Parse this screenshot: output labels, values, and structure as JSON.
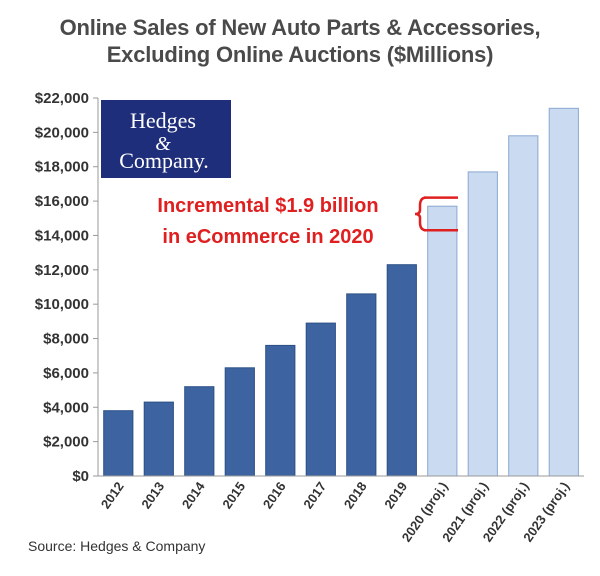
{
  "chart_data": {
    "type": "bar",
    "title_line1": "Online Sales of New Auto Parts & Accessories,",
    "title_line2": "Excluding Online Auctions ($Millions)",
    "categories": [
      "2012",
      "2013",
      "2014",
      "2015",
      "2016",
      "2017",
      "2018",
      "2019",
      "2020 (proj.)",
      "2021 (proj.)",
      "2022 (proj.)",
      "2023 (proj.)"
    ],
    "values": [
      3800,
      4300,
      5200,
      6300,
      7600,
      8900,
      10600,
      12300,
      15700,
      17700,
      19800,
      21400
    ],
    "projected": [
      false,
      false,
      false,
      false,
      false,
      false,
      false,
      false,
      true,
      true,
      true,
      true
    ],
    "yticks": [
      "$0",
      "$2,000",
      "$4,000",
      "$6,000",
      "$8,000",
      "$10,000",
      "$12,000",
      "$14,000",
      "$16,000",
      "$18,000",
      "$20,000",
      "$22,000"
    ],
    "ylim": [
      0,
      22000
    ],
    "grid": false,
    "colors": {
      "actual": "#3d64a0",
      "projected": "#c9daf1",
      "projected_edge": "#8aa8d2",
      "annotation": "#e02020"
    },
    "annotation": {
      "line1": "Incremental $1.9 billion",
      "line2": "in eCommerce in 2020",
      "range": [
        14300,
        16200
      ]
    },
    "logo": {
      "line1": "Hedges",
      "ampersand": "&",
      "line2": "Company."
    },
    "source": "Source: Hedges & Company"
  }
}
